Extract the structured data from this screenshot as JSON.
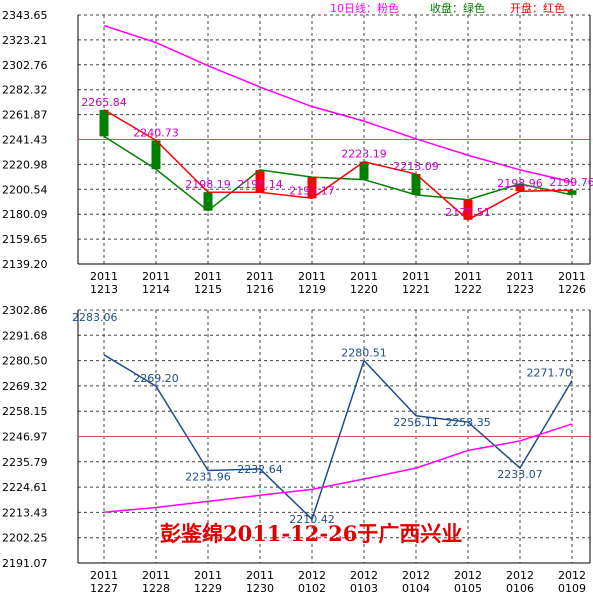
{
  "colors": {
    "ma": "#ff00ff",
    "close": "#008000",
    "open": "#ff0000",
    "ref": "#e05050",
    "line2": "#1f4f8a",
    "grid": "#444444",
    "dlabel1": "#cc00cc",
    "dlabel2": "#1f4f8a"
  },
  "legend": [
    {
      "label": "10日线：粉色",
      "color": "#ff00ff"
    },
    {
      "label": "收盘：绿色",
      "color": "#008000"
    },
    {
      "label": "开盘：红色",
      "color": "#ff0000"
    }
  ],
  "watermark": "彭鉴绵2011-12-26于广西兴业",
  "chart_data": [
    {
      "type": "line",
      "title": "",
      "categories": [
        [
          "2011",
          "1213"
        ],
        [
          "2011",
          "1214"
        ],
        [
          "2011",
          "1215"
        ],
        [
          "2011",
          "1216"
        ],
        [
          "2011",
          "1219"
        ],
        [
          "2011",
          "1220"
        ],
        [
          "2011",
          "1221"
        ],
        [
          "2011",
          "1222"
        ],
        [
          "2011",
          "1223"
        ],
        [
          "2011",
          "1226"
        ]
      ],
      "yticks": [
        "2343.65",
        "2323.21",
        "2302.76",
        "2282.32",
        "2261.87",
        "2241.43",
        "2220.98",
        "2200.54",
        "2180.09",
        "2159.65",
        "2139.20"
      ],
      "ylim": [
        2139.2,
        2343.65
      ],
      "grid": true,
      "reference_line": 2241.43,
      "open": [
        2265.84,
        2240.73,
        2198.19,
        2198.14,
        2193.17,
        2223.19,
        2213.09,
        2175.51,
        2198.96,
        2199.76
      ],
      "close": [
        2244.0,
        2217.0,
        2183.0,
        2216.5,
        2210.5,
        2208.5,
        2196.0,
        2192.0,
        2205.0,
        2196.0
      ],
      "ma10": [
        2335.0,
        2321.0,
        2302.0,
        2284.5,
        2268.5,
        2256.5,
        2242.0,
        2228.5,
        2216.5,
        2206.5
      ],
      "data_labels": [
        "2265.84",
        "2240.73",
        "2198.19",
        "2198.14",
        "2193.17",
        "2223.19",
        "2213.09",
        "2175.51",
        "2198.96",
        "2199.76"
      ]
    },
    {
      "type": "line",
      "title": "",
      "categories": [
        [
          "2011",
          "1227"
        ],
        [
          "2011",
          "1228"
        ],
        [
          "2011",
          "1229"
        ],
        [
          "2011",
          "1230"
        ],
        [
          "2012",
          "0102"
        ],
        [
          "2012",
          "0103"
        ],
        [
          "2012",
          "0104"
        ],
        [
          "2012",
          "0105"
        ],
        [
          "2012",
          "0106"
        ],
        [
          "2012",
          "0109"
        ]
      ],
      "yticks": [
        "2302.86",
        "2291.68",
        "2280.50",
        "2269.32",
        "2258.15",
        "2246.97",
        "2235.79",
        "2224.61",
        "2213.43",
        "2202.25",
        "2191.07"
      ],
      "ylim": [
        2191.07,
        2302.86
      ],
      "grid": true,
      "reference_line": 2246.97,
      "series": [
        {
          "values": [
            2283.06,
            2269.2,
            2231.96,
            2232.64,
            2210.42,
            2280.51,
            2256.11,
            2253.35,
            2233.07,
            2271.7
          ]
        },
        {
          "values": [
            2213.5,
            2215.6,
            2218.3,
            2221.0,
            2223.6,
            2228.2,
            2233.0,
            2240.8,
            2245.0,
            2252.5
          ]
        }
      ],
      "data_labels": [
        "2283.06",
        "2269.20",
        "2231.96",
        "2232.64",
        "2210.42",
        "2280.51",
        "2256.11",
        "2253.35",
        "2233.07",
        "2271.70"
      ]
    }
  ]
}
